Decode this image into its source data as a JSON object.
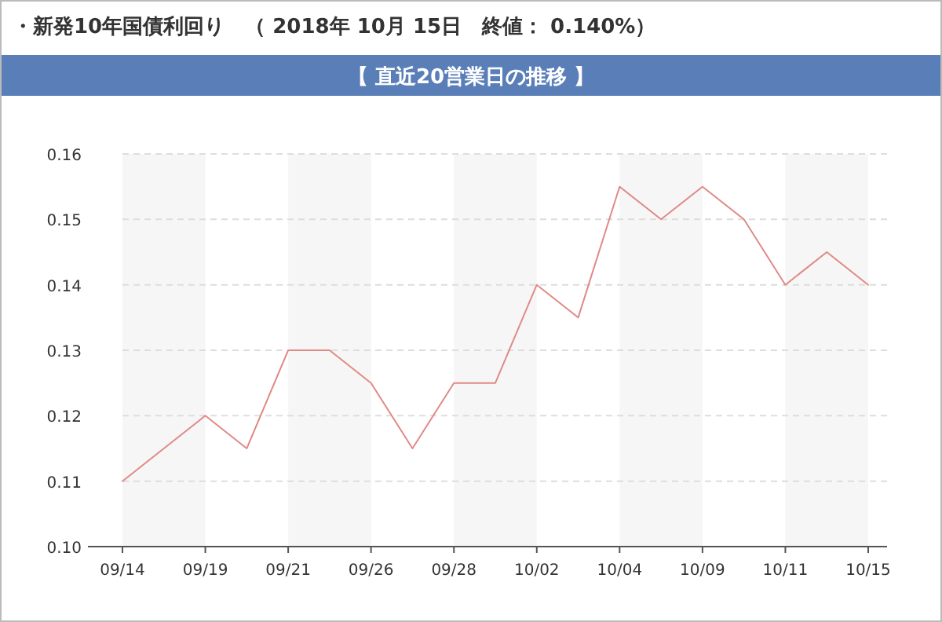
{
  "chart_data": {
    "type": "line",
    "title": "・新発10年国債利回り　（ 2018年 10月 15日　終値： 0.140%）",
    "subtitle": "【 直近20営業日の推移 】",
    "categories": [
      "09/14",
      null,
      "09/19",
      null,
      "09/21",
      null,
      "09/26",
      null,
      "09/28",
      null,
      "10/02",
      null,
      "10/04",
      null,
      "10/09",
      null,
      "10/11",
      null,
      "10/15"
    ],
    "series": [
      {
        "color": "#e08a86",
        "values": [
          0.11,
          0.115,
          0.12,
          0.115,
          0.13,
          0.13,
          0.125,
          0.115,
          0.125,
          0.125,
          0.14,
          0.135,
          0.155,
          0.15,
          0.155,
          0.15,
          0.14,
          0.145,
          0.14
        ]
      }
    ],
    "ylim": [
      0.1,
      0.16
    ],
    "yticks": [
      {
        "value": 0.1,
        "label": "0.10"
      },
      {
        "value": 0.11,
        "label": "0.11"
      },
      {
        "value": 0.12,
        "label": "0.12"
      },
      {
        "value": 0.13,
        "label": "0.13"
      },
      {
        "value": 0.14,
        "label": "0.14"
      },
      {
        "value": 0.15,
        "label": "0.15"
      },
      {
        "value": 0.16,
        "label": "0.16"
      }
    ],
    "bands": [
      {
        "axis": "x",
        "from": "09/14",
        "to": "09/19",
        "color": "#f6f6f6"
      },
      {
        "axis": "x",
        "from": "09/21",
        "to": "09/26",
        "color": "#f6f6f6"
      },
      {
        "axis": "x",
        "from": "09/28",
        "to": "10/02",
        "color": "#f6f6f6"
      },
      {
        "axis": "x",
        "from": "10/04",
        "to": "10/09",
        "color": "#f6f6f6"
      },
      {
        "axis": "x",
        "from": "10/11",
        "to": "10/15",
        "color": "#f6f6f6"
      }
    ],
    "grid": "y",
    "line_style": "solid"
  }
}
